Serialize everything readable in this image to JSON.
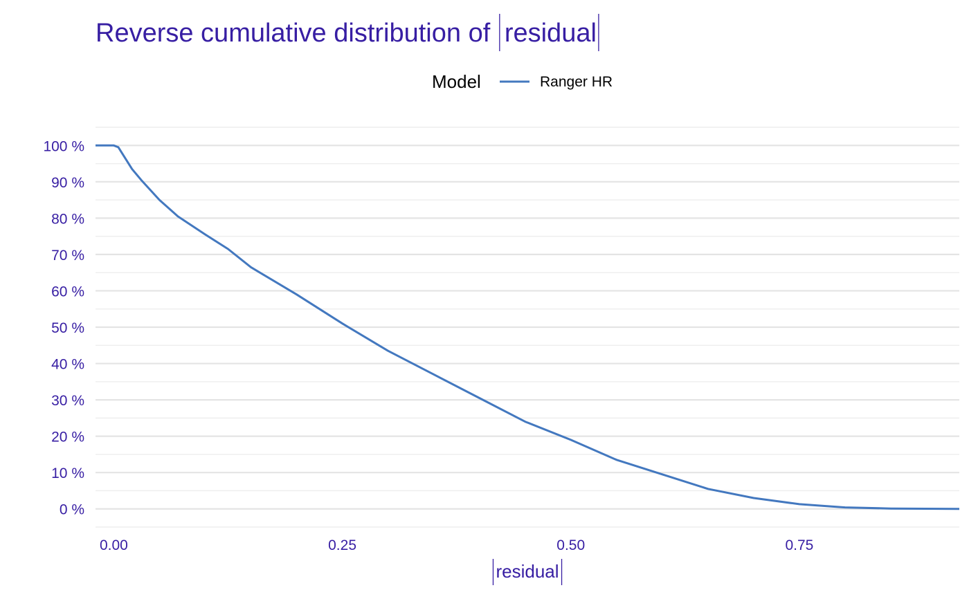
{
  "chart_data": {
    "type": "line",
    "title_prefix": "Reverse cumulative distribution of ",
    "title_var": "residual",
    "xlabel_var": "residual",
    "ylabel": "",
    "legend": {
      "title": "Model",
      "position": "top"
    },
    "x_ticks": [
      0.0,
      0.25,
      0.5,
      0.75
    ],
    "x_tick_labels": [
      "0.00",
      "0.25",
      "0.50",
      "0.75"
    ],
    "y_ticks": [
      0,
      10,
      20,
      30,
      40,
      50,
      60,
      70,
      80,
      90,
      100
    ],
    "y_tick_labels": [
      "0 %",
      "10 %",
      "20 %",
      "30 %",
      "40 %",
      "50 %",
      "60 %",
      "70 %",
      "80 %",
      "90 %",
      "100 %"
    ],
    "xlim": [
      -0.02,
      0.925
    ],
    "ylim": [
      -5,
      105
    ],
    "grid": true,
    "series": [
      {
        "name": "Ranger HR",
        "color": "#4378BF",
        "x": [
          -0.02,
          0.0,
          0.005,
          0.01,
          0.02,
          0.03,
          0.05,
          0.07,
          0.1,
          0.125,
          0.15,
          0.2,
          0.25,
          0.3,
          0.35,
          0.4,
          0.45,
          0.5,
          0.55,
          0.6,
          0.65,
          0.7,
          0.75,
          0.8,
          0.85,
          0.925
        ],
        "y": [
          100,
          100,
          99.5,
          97.5,
          93.5,
          90.5,
          85,
          80.5,
          75.5,
          71.5,
          66.5,
          59,
          51,
          43.5,
          37,
          30.5,
          24,
          19,
          13.5,
          9.5,
          5.5,
          3,
          1.3,
          0.4,
          0.1,
          0.0
        ]
      }
    ]
  }
}
